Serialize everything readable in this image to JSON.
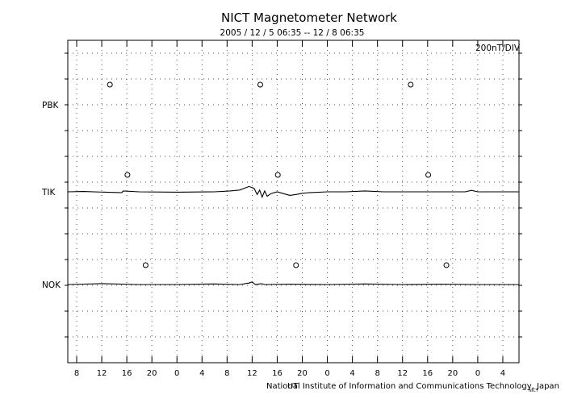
{
  "chart_data": {
    "type": "line",
    "title": "NICT Magnetometer Network",
    "subtitle": "2005 / 12 /  5   06:35 -- 12 / 8   06:35",
    "scale_label": "200nT/DIV",
    "xlabel": "UT",
    "credit": "National Institute of Information and Communications Technology, Japan",
    "corner_mark": "NICT",
    "x_tick_labels": [
      "8",
      "12",
      "16",
      "20",
      "0",
      "4",
      "8",
      "12",
      "16",
      "20",
      "0",
      "4",
      "8",
      "12",
      "16",
      "20",
      "0",
      "4"
    ],
    "x_unit": "hours UT",
    "x_range_hours": [
      6.583,
      78.583
    ],
    "grid": true,
    "stations": [
      {
        "name": "PBK",
        "local_midnight_marks_hours": [
          13.3,
          37.3,
          61.3
        ],
        "data": []
      },
      {
        "name": "TIK",
        "local_midnight_marks_hours": [
          16.1,
          40.1,
          64.1
        ],
        "data": [
          [
            6.6,
            0.0
          ],
          [
            9,
            0.02
          ],
          [
            15.2,
            -0.05
          ],
          [
            15.4,
            0.05
          ],
          [
            18,
            0.0
          ],
          [
            24,
            -0.02
          ],
          [
            30,
            0.0
          ],
          [
            32.5,
            0.05
          ],
          [
            34,
            0.1
          ],
          [
            35.5,
            0.3
          ],
          [
            36.3,
            0.2
          ],
          [
            36.8,
            -0.15
          ],
          [
            37.2,
            0.1
          ],
          [
            37.6,
            -0.3
          ],
          [
            38,
            0.05
          ],
          [
            38.4,
            -0.25
          ],
          [
            39,
            -0.1
          ],
          [
            40,
            0.0
          ],
          [
            41,
            -0.1
          ],
          [
            42,
            -0.2
          ],
          [
            43,
            -0.15
          ],
          [
            44,
            -0.08
          ],
          [
            45,
            -0.05
          ],
          [
            48,
            0.0
          ],
          [
            51,
            0.0
          ],
          [
            54,
            0.05
          ],
          [
            57,
            0.0
          ],
          [
            60,
            0.0
          ],
          [
            63,
            0.0
          ],
          [
            66,
            0.0
          ],
          [
            70,
            0.0
          ],
          [
            71,
            0.08
          ],
          [
            72,
            0.0
          ],
          [
            78.5,
            0.0
          ]
        ]
      },
      {
        "name": "NOK",
        "local_midnight_marks_hours": [
          19.0,
          43.0,
          67.0
        ],
        "data": [
          [
            6.6,
            0.0
          ],
          [
            12,
            0.05
          ],
          [
            18,
            0.0
          ],
          [
            24,
            0.0
          ],
          [
            30,
            0.03
          ],
          [
            34,
            0.0
          ],
          [
            35.5,
            0.08
          ],
          [
            36,
            0.15
          ],
          [
            36.5,
            0.0
          ],
          [
            37.5,
            0.05
          ],
          [
            38,
            0.0
          ],
          [
            42,
            0.02
          ],
          [
            48,
            0.0
          ],
          [
            54,
            0.03
          ],
          [
            60,
            0.0
          ],
          [
            66,
            0.02
          ],
          [
            72,
            0.0
          ],
          [
            78.5,
            0.0
          ]
        ]
      }
    ]
  }
}
